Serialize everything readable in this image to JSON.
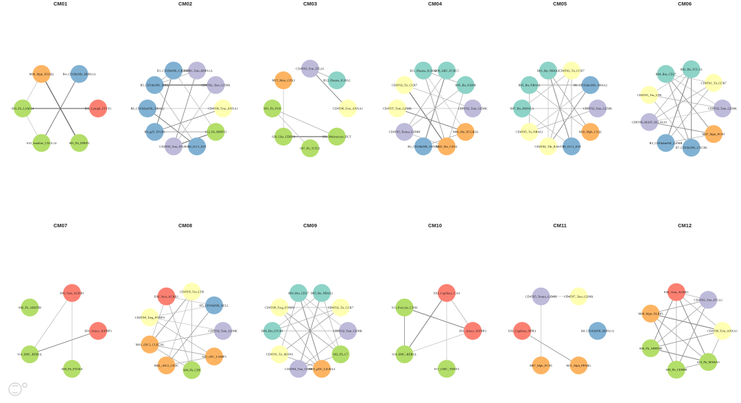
{
  "figure": {
    "watermark": "大数跨境"
  },
  "palette": {
    "teal": "#8DD3C7",
    "yellow": "#FFFFB3",
    "lavender": "#BEBADA",
    "red": "#FB8072",
    "blue": "#80B1D3",
    "orange": "#FDB462",
    "green": "#B3DE69"
  },
  "panels": [
    {
      "title": "CM01",
      "nodes": [
        {
          "label": "E01_Lymph_LYVE1",
          "color": "red"
        },
        {
          "label": "B4_CD16hiNK_HSPA1A",
          "color": "blue"
        },
        {
          "label": "M09_Mph_FOLR2",
          "color": "orange"
        },
        {
          "label": "S03_Fb_LAMA4",
          "color": "green"
        },
        {
          "label": "S19_Satellite_CXCL14",
          "color": "green"
        },
        {
          "label": "S05_Fb_DPEP1",
          "color": "green"
        }
      ],
      "edges": [
        [
          2,
          5,
          0.8
        ],
        [
          1,
          4,
          0.6
        ],
        [
          3,
          0,
          0.7
        ],
        [
          3,
          4,
          0.2
        ],
        [
          3,
          2,
          0.2
        ]
      ]
    },
    {
      "title": "CM02",
      "nodes": [
        {
          "label": "CD4T06_Trm_ANXA1",
          "color": "yellow"
        },
        {
          "label": "CD8T02_Tem_GZMK",
          "color": "lavender"
        },
        {
          "label": "CD4T01_Tem_HSPA1A",
          "color": "lavender"
        },
        {
          "label": "B1_CD16hiNK_CX3CR1",
          "color": "blue"
        },
        {
          "label": "B5_CD16hiNK_SELL",
          "color": "blue"
        },
        {
          "label": "B6_CD16dimNK_NR4A2",
          "color": "blue"
        },
        {
          "label": "B9_gdT_ITGB1",
          "color": "blue"
        },
        {
          "label": "CD4T03_Trm_ITGB1",
          "color": "lavender"
        },
        {
          "label": "B8_ILC1_KIT",
          "color": "blue"
        },
        {
          "label": "S12_Fb_MMP11",
          "color": "green"
        }
      ],
      "edges": [
        [
          4,
          1,
          0.85
        ],
        [
          3,
          6,
          0.6
        ],
        [
          5,
          8,
          0.6
        ],
        [
          2,
          7,
          0.5
        ],
        [
          0,
          6,
          0.5
        ],
        [
          6,
          9,
          0.4
        ],
        [
          9,
          7,
          0.7
        ],
        [
          4,
          8,
          0.3
        ],
        [
          3,
          4,
          0.3
        ],
        [
          1,
          7,
          0.25
        ],
        [
          0,
          5,
          0.2
        ],
        [
          3,
          9,
          0.25
        ],
        [
          2,
          4,
          0.3
        ]
      ]
    },
    {
      "title": "CM03",
      "nodes": [
        {
          "label": "CD4T06_Trm_ANXA1",
          "color": "yellow"
        },
        {
          "label": "B12_Plasma_IGHA2",
          "color": "teal"
        },
        {
          "label": "CD4T03_Trm_ITGA1",
          "color": "lavender"
        },
        {
          "label": "M15_Mast_CPA3",
          "color": "orange"
        },
        {
          "label": "S01_Fb_PI16",
          "color": "green"
        },
        {
          "label": "S20_Glia_CDH19",
          "color": "green"
        },
        {
          "label": "S07_Fb_TCF21",
          "color": "green"
        },
        {
          "label": "S36_Melanocyte_DCT",
          "color": "green"
        }
      ],
      "edges": [
        [
          5,
          7,
          0.75
        ],
        [
          2,
          0,
          0.55
        ],
        [
          2,
          1,
          0.35
        ],
        [
          4,
          6,
          0.25
        ],
        [
          3,
          5,
          0.2
        ],
        [
          4,
          7,
          0.3
        ]
      ]
    },
    {
      "title": "CM04",
      "nodes": [
        {
          "label": "CD8T02_Tem_GZMK",
          "color": "lavender"
        },
        {
          "label": "B05_Bn_IGHM",
          "color": "teal"
        },
        {
          "label": "B08_ABC_FCRL5",
          "color": "teal"
        },
        {
          "label": "B11_Plasma_IGHA2",
          "color": "teal"
        },
        {
          "label": "CD4T02_Tn_CCR7",
          "color": "yellow"
        },
        {
          "label": "CD4T07_Tem_GZMK",
          "color": "yellow"
        },
        {
          "label": "CD4T05_Temra_GZMH",
          "color": "lavender"
        },
        {
          "label": "B2_CD16hiNK_SYNE2",
          "color": "blue"
        },
        {
          "label": "M05_Mo_CD14",
          "color": "orange"
        },
        {
          "label": "M06_Mo_FCGR3A",
          "color": "orange"
        }
      ],
      "edges": [
        [
          4,
          8,
          0.7
        ],
        [
          5,
          9,
          0.55
        ],
        [
          2,
          7,
          0.6
        ],
        [
          3,
          1,
          0.35
        ],
        [
          1,
          6,
          0.3
        ],
        [
          4,
          0,
          0.25
        ],
        [
          6,
          2,
          0.3
        ],
        [
          3,
          8,
          0.4
        ],
        [
          5,
          0,
          0.2
        ],
        [
          7,
          9,
          0.35
        ],
        [
          6,
          8,
          0.25
        ],
        [
          3,
          9,
          0.2
        ],
        [
          1,
          8,
          0.3
        ]
      ]
    },
    {
      "title": "CM05",
      "nodes": [
        {
          "label": "CD8T02_Tem_GZMK",
          "color": "lavender"
        },
        {
          "label": "B6_CD16dimNK_NR4A2",
          "color": "blue"
        },
        {
          "label": "CD4T02_Tn_CCR7",
          "color": "yellow"
        },
        {
          "label": "B01_Bn_NR4A3",
          "color": "teal"
        },
        {
          "label": "B05_Bn_NR4A2",
          "color": "teal"
        },
        {
          "label": "B07_Bn_HSPA1A",
          "color": "teal"
        },
        {
          "label": "CD4T05_Tn_NR4A1",
          "color": "yellow"
        },
        {
          "label": "CD4T04_Tfh_IL6ST",
          "color": "yellow"
        },
        {
          "label": "B8_ILC1_KIT",
          "color": "blue"
        },
        {
          "label": "M10_Mph_C1QL",
          "color": "orange"
        }
      ],
      "edges": [
        [
          3,
          8,
          0.55
        ],
        [
          4,
          1,
          0.45
        ],
        [
          5,
          0,
          0.3
        ],
        [
          2,
          7,
          0.35
        ],
        [
          3,
          9,
          0.4
        ],
        [
          4,
          6,
          0.3
        ],
        [
          1,
          7,
          0.5
        ],
        [
          2,
          5,
          0.25
        ],
        [
          6,
          0,
          0.3
        ],
        [
          5,
          8,
          0.25
        ],
        [
          9,
          4,
          0.3
        ],
        [
          1,
          6,
          0.25
        ],
        [
          3,
          7,
          0.2
        ],
        [
          2,
          8,
          0.3
        ]
      ]
    },
    {
      "title": "CM06",
      "nodes": [
        {
          "label": "CD8T02_Tem_GZMK",
          "color": "lavender"
        },
        {
          "label": "CD4T01_Tn_CCR7",
          "color": "yellow"
        },
        {
          "label": "B02_Bn_TCL1A",
          "color": "teal"
        },
        {
          "label": "B04_Bm_CD27",
          "color": "teal"
        },
        {
          "label": "CD4T05_Tm_LTB",
          "color": "yellow"
        },
        {
          "label": "CD8T06_MAIT_SLC4A10",
          "color": "lavender"
        },
        {
          "label": "B3_CD16dimNK_GZMB",
          "color": "blue"
        },
        {
          "label": "B7_CD16hiNK_CXCR6",
          "color": "blue"
        },
        {
          "label": "M07_Mph_FCN1",
          "color": "orange"
        }
      ],
      "edges": [
        [
          2,
          6,
          0.6
        ],
        [
          3,
          8,
          0.5
        ],
        [
          2,
          7,
          0.55
        ],
        [
          4,
          0,
          0.3
        ],
        [
          1,
          5,
          0.35
        ],
        [
          3,
          7,
          0.45
        ],
        [
          5,
          8,
          0.5
        ],
        [
          2,
          5,
          0.3
        ],
        [
          4,
          7,
          0.3
        ],
        [
          1,
          6,
          0.35
        ],
        [
          3,
          0,
          0.25
        ],
        [
          6,
          8,
          0.3
        ],
        [
          2,
          4,
          0.25
        ],
        [
          0,
          5,
          0.2
        ],
        [
          3,
          1,
          0.2
        ]
      ]
    },
    {
      "title": "CM07",
      "nodes": [
        {
          "label": "E01_Artery_IGFBP3",
          "color": "red"
        },
        {
          "label": "E06_Vein_ACKR1",
          "color": "red"
        },
        {
          "label": "S06_Fb_ARID5B",
          "color": "green"
        },
        {
          "label": "S14_SMC_RERGL",
          "color": "green"
        },
        {
          "label": "S08_Fb_PTGES",
          "color": "green"
        }
      ],
      "edges": [
        [
          0,
          3,
          0.55
        ],
        [
          1,
          3,
          0.25
        ],
        [
          1,
          4,
          0.2
        ]
      ]
    },
    {
      "title": "CM08",
      "nodes": [
        {
          "label": "CD8T02_Tem_GZMK",
          "color": "lavender"
        },
        {
          "label": "B5_CD16hiNK_SELL",
          "color": "blue"
        },
        {
          "label": "CD4T05_Tm_LTB",
          "color": "yellow"
        },
        {
          "label": "E06_Vein_ACKR1",
          "color": "red"
        },
        {
          "label": "CD4T08_Treg_FOXP3",
          "color": "yellow"
        },
        {
          "label": "M01_cDC1_CLEC9A",
          "color": "orange"
        },
        {
          "label": "M02_cDC2_CD1C",
          "color": "orange"
        },
        {
          "label": "S04_Fb_CD9",
          "color": "green"
        },
        {
          "label": "S20_cDC_LAMP3",
          "color": "orange"
        }
      ],
      "edges": [
        [
          2,
          5,
          0.45
        ],
        [
          1,
          6,
          0.4
        ],
        [
          3,
          7,
          0.3
        ],
        [
          4,
          8,
          0.3
        ],
        [
          5,
          8,
          0.35
        ],
        [
          2,
          6,
          0.25
        ],
        [
          1,
          3,
          0.25
        ],
        [
          0,
          5,
          0.3
        ],
        [
          3,
          5,
          0.25
        ],
        [
          4,
          0,
          0.2
        ],
        [
          6,
          8,
          0.3
        ],
        [
          2,
          7,
          0.3
        ],
        [
          1,
          4,
          0.2
        ],
        [
          5,
          7,
          0.3
        ]
      ]
    },
    {
      "title": "CM09",
      "nodes": [
        {
          "label": "CD8T02_Tem_GZMK",
          "color": "lavender"
        },
        {
          "label": "CD4T02_Tn_CCR7",
          "color": "yellow"
        },
        {
          "label": "B05_Bn_NR4A2",
          "color": "teal"
        },
        {
          "label": "B04_Bm_CD27",
          "color": "teal"
        },
        {
          "label": "CD4T08_Treg_FOXP3",
          "color": "yellow"
        },
        {
          "label": "B06_Bm_ITGB1",
          "color": "teal"
        },
        {
          "label": "CD4T01_Tn_SESN3",
          "color": "yellow"
        },
        {
          "label": "CD4T04_Trm_CD69",
          "color": "lavender"
        },
        {
          "label": "M03_pDC_LILRA4",
          "color": "orange"
        },
        {
          "label": "S02_Fb_C7",
          "color": "green"
        }
      ],
      "edges": [
        [
          3,
          8,
          0.55
        ],
        [
          2,
          7,
          0.5
        ],
        [
          4,
          9,
          0.4
        ],
        [
          5,
          0,
          0.35
        ],
        [
          1,
          6,
          0.4
        ],
        [
          3,
          6,
          0.3
        ],
        [
          2,
          9,
          0.3
        ],
        [
          4,
          8,
          0.35
        ],
        [
          5,
          1,
          0.3
        ],
        [
          7,
          0,
          0.3
        ],
        [
          6,
          8,
          0.4
        ],
        [
          3,
          0,
          0.25
        ],
        [
          2,
          5,
          0.3
        ],
        [
          4,
          1,
          0.25
        ],
        [
          7,
          9,
          0.35
        ],
        [
          5,
          8,
          0.3
        ],
        [
          3,
          9,
          0.2
        ]
      ]
    },
    {
      "title": "CM10",
      "nodes": [
        {
          "label": "E01_Artery_IGFBP3",
          "color": "red"
        },
        {
          "label": "E02_Capillary_CA4",
          "color": "red"
        },
        {
          "label": "S13_Pericyte_CD36",
          "color": "green"
        },
        {
          "label": "S14_SMC_RERGL",
          "color": "green"
        },
        {
          "label": "S17_CMC_TNNT2",
          "color": "green"
        }
      ],
      "edges": [
        [
          2,
          0,
          0.6
        ],
        [
          1,
          3,
          0.6
        ],
        [
          2,
          3,
          0.45
        ],
        [
          1,
          0,
          0.3
        ],
        [
          3,
          0,
          0.2
        ],
        [
          1,
          4,
          0.2
        ]
      ]
    },
    {
      "title": "CM11",
      "nodes": [
        {
          "label": "B4_CD16hiNK_HSPA1A",
          "color": "blue"
        },
        {
          "label": "CD4T07_Tem_GZMK",
          "color": "yellow"
        },
        {
          "label": "CD4T05_Temra_GZMH",
          "color": "lavender"
        },
        {
          "label": "E03_Capillary_NPR3",
          "color": "red"
        },
        {
          "label": "M07_Mph_FCN1",
          "color": "orange"
        },
        {
          "label": "M11_Mph_PPARG",
          "color": "orange"
        }
      ],
      "edges": [
        [
          2,
          1,
          0.2
        ],
        [
          3,
          5,
          0.45
        ],
        [
          2,
          4,
          0.2
        ]
      ]
    },
    {
      "title": "CM12",
      "nodes": [
        {
          "label": "CD4T06_Trm_ANXA1",
          "color": "yellow"
        },
        {
          "label": "CD4T03_Trm_ITGA1",
          "color": "lavender"
        },
        {
          "label": "E06_Vein_ACKR1",
          "color": "red"
        },
        {
          "label": "M08_Mph_NLRP3",
          "color": "orange"
        },
        {
          "label": "S06_Fb_ARID5B",
          "color": "green"
        },
        {
          "label": "S09_Fb_CEBPB",
          "color": "green"
        },
        {
          "label": "S10_Fb_MXRA5",
          "color": "green"
        }
      ],
      "edges": [
        [
          3,
          0,
          0.6
        ],
        [
          2,
          6,
          0.55
        ],
        [
          2,
          4,
          0.5
        ],
        [
          3,
          5,
          0.5
        ],
        [
          4,
          6,
          0.6
        ],
        [
          1,
          5,
          0.45
        ],
        [
          1,
          3,
          0.4
        ],
        [
          4,
          0,
          0.45
        ],
        [
          2,
          0,
          0.35
        ],
        [
          5,
          6,
          0.4
        ],
        [
          3,
          6,
          0.4
        ],
        [
          1,
          4,
          0.35
        ],
        [
          2,
          5,
          0.3
        ],
        [
          1,
          2,
          0.3
        ],
        [
          0,
          6,
          0.35
        ]
      ]
    }
  ]
}
